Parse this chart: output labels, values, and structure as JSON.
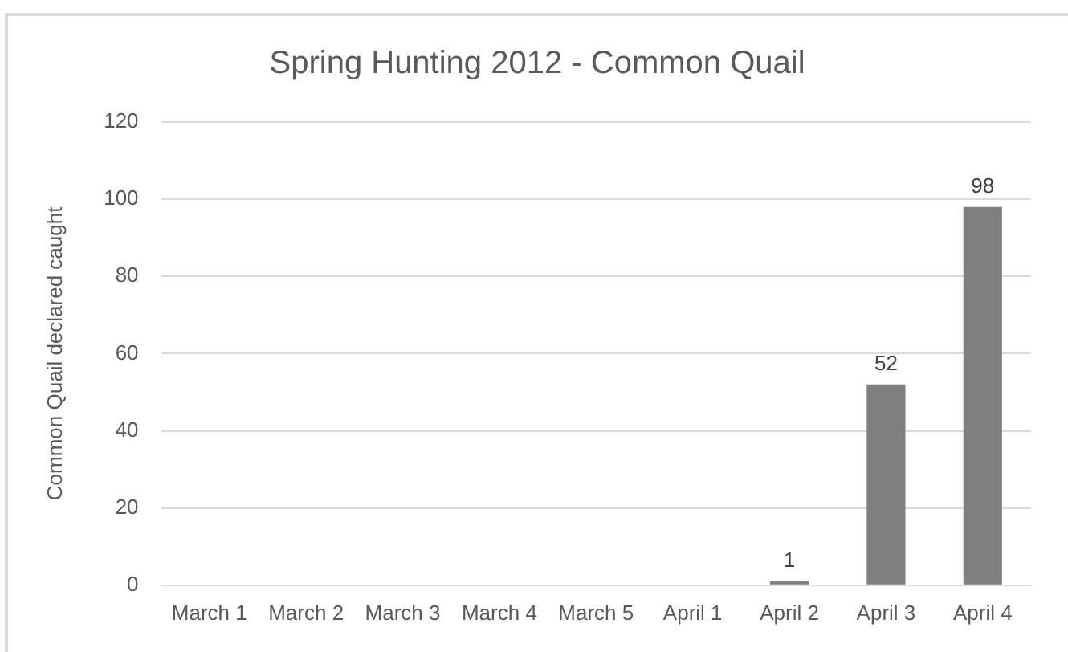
{
  "chart_data": {
    "type": "bar",
    "title": "Spring Hunting 2012 - Common Quail",
    "ylabel": "Common Quail declared caught",
    "categories": [
      "March 1",
      "March 2",
      "March 3",
      "March 4",
      "March 5",
      "April 1",
      "April 2",
      "April 3",
      "April 4"
    ],
    "values": [
      null,
      null,
      null,
      null,
      null,
      null,
      1,
      52,
      98
    ],
    "color": "#7f7f7f",
    "ylim": [
      0,
      120
    ],
    "yticks": [
      0,
      20,
      40,
      60,
      80,
      100,
      120
    ],
    "grid": "y",
    "data_labels": true
  }
}
